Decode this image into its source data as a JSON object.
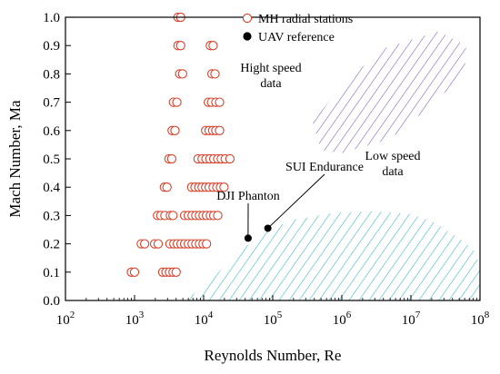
{
  "chart_data": {
    "type": "scatter",
    "xlabel": "Reynolds Number, Re",
    "ylabel": "Mach Number, Ma",
    "xscale": "log",
    "xlim": [
      100,
      100000000
    ],
    "ylim": [
      0,
      1.0
    ],
    "x_ticks": [
      {
        "value": 100,
        "base": "10",
        "exp": "2"
      },
      {
        "value": 1000,
        "base": "10",
        "exp": "3"
      },
      {
        "value": 10000,
        "base": "10",
        "exp": "4"
      },
      {
        "value": 100000,
        "base": "10",
        "exp": "5"
      },
      {
        "value": 1000000,
        "base": "10",
        "exp": "6"
      },
      {
        "value": 10000000,
        "base": "10",
        "exp": "7"
      },
      {
        "value": 100000000,
        "base": "10",
        "exp": "8"
      }
    ],
    "y_ticks": [
      "0.0",
      "0.1",
      "0.2",
      "0.3",
      "0.4",
      "0.5",
      "0.6",
      "0.7",
      "0.8",
      "0.9",
      "1.0"
    ],
    "grid": false,
    "legend": {
      "position": "top-right",
      "entries": [
        {
          "label": "MH radial stations",
          "marker": "open-circle"
        },
        {
          "label": "UAV reference",
          "marker": "filled-circle"
        }
      ]
    },
    "series": [
      {
        "name": "MH radial stations",
        "marker": "open-circle",
        "color": "#d9412b",
        "points": [
          [
            4250,
            1.0
          ],
          [
            4650,
            1.0
          ],
          [
            4250,
            0.9
          ],
          [
            4650,
            0.9
          ],
          [
            12500,
            0.9
          ],
          [
            13700,
            0.9
          ],
          [
            4500,
            0.8
          ],
          [
            4950,
            0.8
          ],
          [
            13200,
            0.8
          ],
          [
            14600,
            0.8
          ],
          [
            3650,
            0.7
          ],
          [
            4100,
            0.7
          ],
          [
            11700,
            0.7
          ],
          [
            13000,
            0.7
          ],
          [
            15000,
            0.7
          ],
          [
            17000,
            0.7
          ],
          [
            3500,
            0.6
          ],
          [
            3850,
            0.6
          ],
          [
            10700,
            0.6
          ],
          [
            12000,
            0.6
          ],
          [
            13500,
            0.6
          ],
          [
            15000,
            0.6
          ],
          [
            17000,
            0.6
          ],
          [
            3150,
            0.5
          ],
          [
            3450,
            0.5
          ],
          [
            8300,
            0.5
          ],
          [
            9500,
            0.5
          ],
          [
            10800,
            0.5
          ],
          [
            12300,
            0.5
          ],
          [
            14000,
            0.5
          ],
          [
            16000,
            0.5
          ],
          [
            18000,
            0.5
          ],
          [
            20500,
            0.5
          ],
          [
            24000,
            0.5
          ],
          [
            2700,
            0.4
          ],
          [
            2950,
            0.4
          ],
          [
            6700,
            0.4
          ],
          [
            7500,
            0.4
          ],
          [
            8500,
            0.4
          ],
          [
            9500,
            0.4
          ],
          [
            10700,
            0.4
          ],
          [
            12000,
            0.4
          ],
          [
            13700,
            0.4
          ],
          [
            15500,
            0.4
          ],
          [
            17500,
            0.4
          ],
          [
            19700,
            0.4
          ],
          [
            2150,
            0.3
          ],
          [
            2400,
            0.3
          ],
          [
            2750,
            0.3
          ],
          [
            3300,
            0.3
          ],
          [
            3600,
            0.3
          ],
          [
            5300,
            0.3
          ],
          [
            6000,
            0.3
          ],
          [
            6800,
            0.3
          ],
          [
            7700,
            0.3
          ],
          [
            8700,
            0.3
          ],
          [
            9800,
            0.3
          ],
          [
            11000,
            0.3
          ],
          [
            12500,
            0.3
          ],
          [
            14000,
            0.3
          ],
          [
            16000,
            0.3
          ],
          [
            1250,
            0.2
          ],
          [
            1400,
            0.2
          ],
          [
            1950,
            0.2
          ],
          [
            2200,
            0.2
          ],
          [
            3250,
            0.2
          ],
          [
            3700,
            0.2
          ],
          [
            4150,
            0.2
          ],
          [
            4700,
            0.2
          ],
          [
            5300,
            0.2
          ],
          [
            6000,
            0.2
          ],
          [
            6800,
            0.2
          ],
          [
            7700,
            0.2
          ],
          [
            8700,
            0.2
          ],
          [
            9800,
            0.2
          ],
          [
            11000,
            0.2
          ],
          [
            900,
            0.1
          ],
          [
            1000,
            0.1
          ],
          [
            2550,
            0.1
          ],
          [
            2850,
            0.1
          ],
          [
            3200,
            0.1
          ],
          [
            3600,
            0.1
          ],
          [
            4000,
            0.1
          ]
        ]
      },
      {
        "name": "UAV reference",
        "marker": "filled-circle",
        "color": "#000000",
        "points": [
          {
            "label": "DJI Phanton",
            "x": 44000,
            "y": 0.22
          },
          {
            "label": "SUI Endurance",
            "x": 85000,
            "y": 0.255
          }
        ]
      }
    ],
    "regions": [
      {
        "label_lines": [
          "Hight speed",
          "data"
        ],
        "hatch": "diagonal",
        "color": "#7b56bd",
        "boundary": [
          [
            380000,
            0.63
          ],
          [
            1000000,
            0.76
          ],
          [
            4000000,
            0.89
          ],
          [
            25000000,
            0.95
          ],
          [
            63000000,
            0.9
          ],
          [
            60000000,
            0.8
          ],
          [
            20000000,
            0.69
          ],
          [
            5000000,
            0.57
          ],
          [
            1000000,
            0.52
          ],
          [
            500000,
            0.53
          ]
        ]
      },
      {
        "label_lines": [
          "Low speed",
          "data"
        ],
        "hatch": "diagonal",
        "color": "#29b3c8",
        "boundary": [
          [
            4500,
            0.0
          ],
          [
            10000,
            0.04
          ],
          [
            25000,
            0.15
          ],
          [
            80000,
            0.245
          ],
          [
            200000,
            0.285
          ],
          [
            800000,
            0.31
          ],
          [
            3000000,
            0.315
          ],
          [
            10000000,
            0.305
          ],
          [
            20000000,
            0.28
          ],
          [
            50000000,
            0.22
          ],
          [
            80000000,
            0.18
          ],
          [
            100000000,
            0.12
          ],
          [
            100000000,
            0.0
          ]
        ]
      }
    ]
  }
}
